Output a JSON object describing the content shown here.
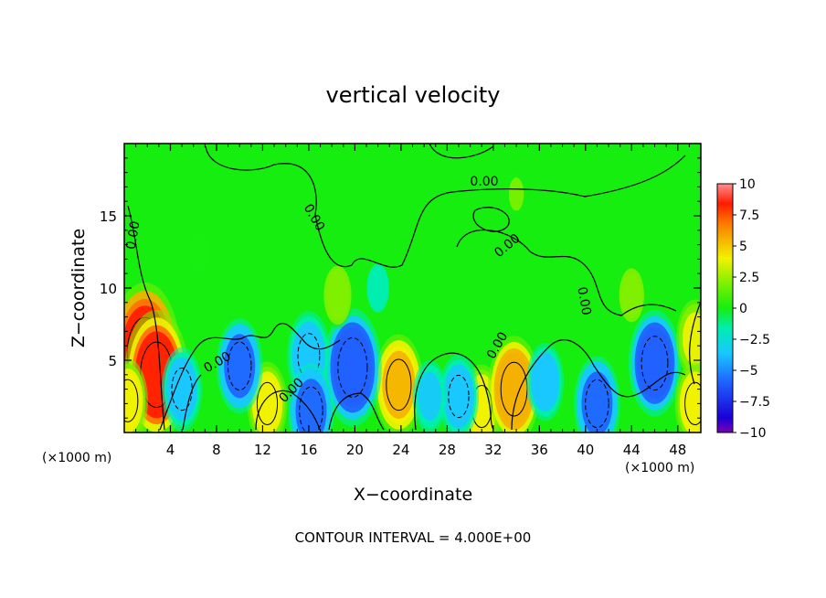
{
  "chart_data": {
    "type": "heatmap",
    "title": "vertical velocity",
    "xlabel": "X−coordinate",
    "ylabel": "Z−coordinate",
    "x_unit": "(×1000 m)",
    "y_unit": "(×1000 m)",
    "xlim": [
      0,
      50
    ],
    "ylim": [
      0,
      20
    ],
    "x_ticks": [
      4,
      8,
      12,
      16,
      20,
      24,
      28,
      32,
      36,
      40,
      44,
      48
    ],
    "y_ticks": [
      5,
      10,
      15
    ],
    "x_tick_labels": [
      "4",
      "8",
      "12",
      "16",
      "20",
      "24",
      "28",
      "32",
      "36",
      "40",
      "44",
      "48"
    ],
    "y_tick_labels": [
      "5",
      "10",
      "15"
    ],
    "colorbar": {
      "range": [
        -10,
        10
      ],
      "tick_values": [
        10,
        7.5,
        5,
        2.5,
        0,
        -2.5,
        -5,
        -7.5,
        -10
      ],
      "tick_labels": [
        "10",
        "7.5",
        "5",
        "2.5",
        "0",
        "−2.5",
        "−5",
        "−7.5",
        "−10"
      ]
    },
    "contour_label": "0.00",
    "contour_interval_text": "CONTOUR INTERVAL = 4.000E+00",
    "features": [
      {
        "x": 1.8,
        "z": 5.5,
        "w": 9.0
      },
      {
        "x": 2.8,
        "z": 4.0,
        "w": 8.0
      },
      {
        "x": 0.3,
        "z": 2.2,
        "w": 4.0
      },
      {
        "x": 12.4,
        "z": 2.0,
        "w": 4.0
      },
      {
        "x": 23.8,
        "z": 3.3,
        "w": 5.5
      },
      {
        "x": 31.0,
        "z": 1.8,
        "w": 4.0
      },
      {
        "x": 33.8,
        "z": 3.0,
        "w": 6.0
      },
      {
        "x": 19.8,
        "z": 4.5,
        "w": -7.0
      },
      {
        "x": 10.0,
        "z": 4.6,
        "w": -5.0
      },
      {
        "x": 16.0,
        "z": 5.3,
        "w": -4.5
      },
      {
        "x": 16.2,
        "z": 1.5,
        "w": -5.0
      },
      {
        "x": 5.0,
        "z": 3.0,
        "w": -4.0
      },
      {
        "x": 29.0,
        "z": 2.5,
        "w": -4.0
      },
      {
        "x": 41.0,
        "z": 2.0,
        "w": -5.0
      },
      {
        "x": 46.0,
        "z": 4.8,
        "w": -6.0
      },
      {
        "x": 36.5,
        "z": 3.5,
        "w": -3.5
      },
      {
        "x": 26.5,
        "z": 2.5,
        "w": -3.0
      },
      {
        "x": 22.0,
        "z": 10.0,
        "w": -1.5
      },
      {
        "x": 18.5,
        "z": 9.5,
        "w": 2.5
      },
      {
        "x": 49.5,
        "z": 6.5,
        "w": 3.5
      },
      {
        "x": 49.5,
        "z": 2.0,
        "w": 4.0
      },
      {
        "x": 6.5,
        "z": 12.5,
        "w": -0.8
      },
      {
        "x": 34.0,
        "z": 16.5,
        "w": 1.0
      },
      {
        "x": 44.0,
        "z": 9.5,
        "w": 2.0
      }
    ]
  }
}
